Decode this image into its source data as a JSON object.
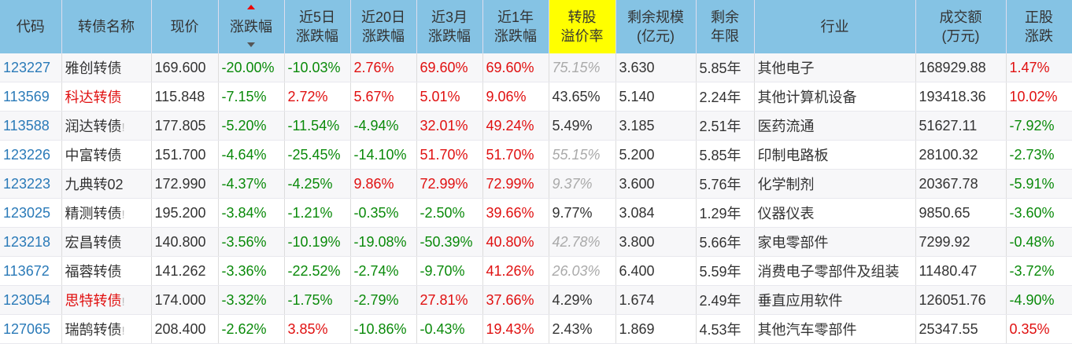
{
  "colors": {
    "header": "#85c3e4",
    "highlight": "#ffff00",
    "up": "#e01010",
    "down": "#0a8a0a"
  },
  "headers": [
    "代码",
    "转债名称",
    "现价",
    "涨跌幅",
    "近5日\n涨跌幅",
    "近20日\n涨跌幅",
    "近3月\n涨跌幅",
    "近1年\n涨跌幅",
    "转股\n溢价率",
    "剩余规模\n(亿元)",
    "剩余\n年限",
    "行业",
    "成交额\n(万元)",
    "正股\n涨跌"
  ],
  "rows": [
    {
      "code": "123227",
      "name": "雅创转债",
      "name_red": false,
      "flag": "",
      "price": "169.600",
      "chg": "-20.00%",
      "chg5": "-10.03%",
      "chg20": "2.76%",
      "chg3m": "69.60%",
      "chg1y": "69.60%",
      "premium": "75.15%",
      "premium_gray": true,
      "scale": "3.630",
      "years": "5.85年",
      "industry": "其他电子",
      "amount": "168929.88",
      "stock_chg": "1.47%"
    },
    {
      "code": "113569",
      "name": "科达转债",
      "name_red": true,
      "flag": "",
      "price": "115.848",
      "chg": "-7.15%",
      "chg5": "2.72%",
      "chg20": "5.67%",
      "chg3m": "5.01%",
      "chg1y": "9.06%",
      "premium": "43.65%",
      "premium_gray": false,
      "scale": "5.140",
      "years": "2.24年",
      "industry": "其他计算机设备",
      "amount": "193418.36",
      "stock_chg": "10.02%"
    },
    {
      "code": "113588",
      "name": "润达转债",
      "name_red": false,
      "flag": "!",
      "price": "177.805",
      "chg": "-5.20%",
      "chg5": "-11.54%",
      "chg20": "-4.94%",
      "chg3m": "32.01%",
      "chg1y": "49.24%",
      "premium": "5.49%",
      "premium_gray": false,
      "scale": "3.185",
      "years": "2.51年",
      "industry": "医药流通",
      "amount": "51627.11",
      "stock_chg": "-7.92%"
    },
    {
      "code": "123226",
      "name": "中富转债",
      "name_red": false,
      "flag": "",
      "price": "151.700",
      "chg": "-4.64%",
      "chg5": "-25.45%",
      "chg20": "-14.10%",
      "chg3m": "51.70%",
      "chg1y": "51.70%",
      "premium": "55.15%",
      "premium_gray": true,
      "scale": "5.200",
      "years": "5.85年",
      "industry": "印制电路板",
      "amount": "28100.32",
      "stock_chg": "-2.73%"
    },
    {
      "code": "123223",
      "name": "九典转02",
      "name_red": false,
      "flag": "",
      "price": "172.990",
      "chg": "-4.37%",
      "chg5": "-4.25%",
      "chg20": "9.86%",
      "chg3m": "72.99%",
      "chg1y": "72.99%",
      "premium": "9.37%",
      "premium_gray": true,
      "scale": "3.600",
      "years": "5.76年",
      "industry": "化学制剂",
      "amount": "20367.78",
      "stock_chg": "-5.91%"
    },
    {
      "code": "123025",
      "name": "精测转债",
      "name_red": false,
      "flag": "!",
      "price": "195.200",
      "chg": "-3.84%",
      "chg5": "-1.21%",
      "chg20": "-0.35%",
      "chg3m": "-2.50%",
      "chg1y": "39.66%",
      "premium": "9.77%",
      "premium_gray": false,
      "scale": "3.084",
      "years": "1.29年",
      "industry": "仪器仪表",
      "amount": "9850.65",
      "stock_chg": "-3.60%"
    },
    {
      "code": "123218",
      "name": "宏昌转债",
      "name_red": false,
      "flag": "",
      "price": "140.800",
      "chg": "-3.56%",
      "chg5": "-10.19%",
      "chg20": "-19.08%",
      "chg3m": "-50.39%",
      "chg1y": "40.80%",
      "premium": "42.78%",
      "premium_gray": true,
      "scale": "3.800",
      "years": "5.66年",
      "industry": "家电零部件",
      "amount": "7299.92",
      "stock_chg": "-0.48%"
    },
    {
      "code": "113672",
      "name": "福蓉转债",
      "name_red": false,
      "flag": "",
      "price": "141.262",
      "chg": "-3.36%",
      "chg5": "-22.52%",
      "chg20": "-2.74%",
      "chg3m": "-9.70%",
      "chg1y": "41.26%",
      "premium": "26.03%",
      "premium_gray": true,
      "scale": "6.400",
      "years": "5.59年",
      "industry": "消费电子零部件及组装",
      "amount": "11480.47",
      "stock_chg": "-3.72%"
    },
    {
      "code": "123054",
      "name": "思特转债",
      "name_red": true,
      "flag": "!",
      "price": "174.000",
      "chg": "-3.32%",
      "chg5": "-1.75%",
      "chg20": "-2.79%",
      "chg3m": "27.81%",
      "chg1y": "37.66%",
      "premium": "4.29%",
      "premium_gray": false,
      "scale": "1.674",
      "years": "2.49年",
      "industry": "垂直应用软件",
      "amount": "126051.76",
      "stock_chg": "-4.90%"
    },
    {
      "code": "127065",
      "name": "瑞鹄转债",
      "name_red": false,
      "flag": "!",
      "price": "208.400",
      "chg": "-2.62%",
      "chg5": "3.85%",
      "chg20": "-10.86%",
      "chg3m": "-0.43%",
      "chg1y": "19.43%",
      "premium": "2.43%",
      "premium_gray": false,
      "scale": "1.869",
      "years": "4.53年",
      "industry": "其他汽车零部件",
      "amount": "25347.55",
      "stock_chg": "0.35%"
    }
  ]
}
